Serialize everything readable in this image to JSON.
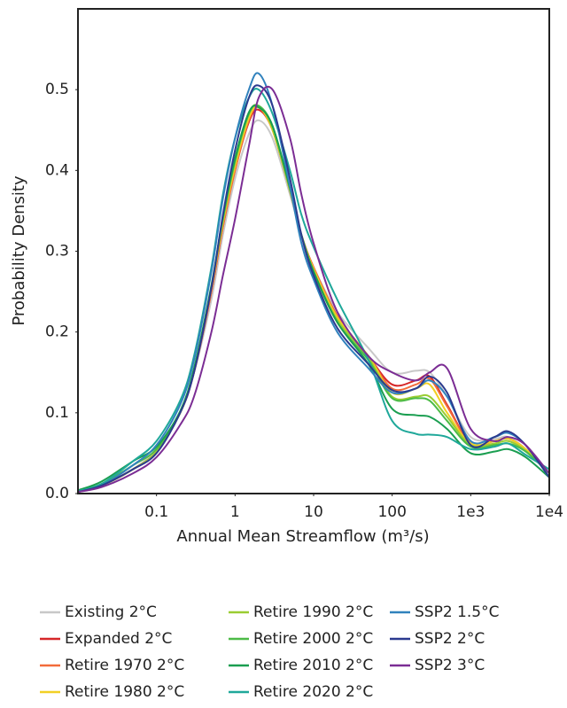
{
  "chart_data": {
    "type": "line",
    "x_label": "Annual Mean Streamflow (m³/s)",
    "y_label": "Probability Density",
    "x": [
      0.01,
      0.02,
      0.05,
      0.1,
      0.2,
      0.3,
      0.5,
      0.7,
      1,
      1.5,
      2,
      3,
      5,
      7,
      10,
      20,
      50,
      100,
      200,
      300,
      500,
      1000,
      2000,
      3000,
      5000,
      10000
    ],
    "xlim": [
      0.01,
      10000
    ],
    "xscale": "log",
    "xticks": [
      0.1,
      1,
      10,
      100,
      {
        "value": 1000,
        "label": "1e3"
      },
      {
        "value": 10000,
        "label": "1e4"
      }
    ],
    "ylim": [
      0,
      0.6
    ],
    "yticks": [
      {
        "value": 0,
        "label": "0.0"
      },
      0.1,
      0.2,
      0.3,
      0.4,
      0.5
    ],
    "grid": false,
    "series": [
      {
        "name": "Existing 2°C",
        "color": "#c8c8c8",
        "values": [
          0.002,
          0.01,
          0.03,
          0.055,
          0.1,
          0.15,
          0.24,
          0.32,
          0.39,
          0.445,
          0.462,
          0.44,
          0.37,
          0.32,
          0.28,
          0.225,
          0.18,
          0.15,
          0.152,
          0.15,
          0.12,
          0.07,
          0.068,
          0.07,
          0.055,
          0.025
        ]
      },
      {
        "name": "Expanded 2°C",
        "color": "#d62728",
        "values": [
          0.002,
          0.01,
          0.03,
          0.052,
          0.1,
          0.15,
          0.25,
          0.33,
          0.4,
          0.46,
          0.475,
          0.45,
          0.375,
          0.32,
          0.28,
          0.22,
          0.17,
          0.135,
          0.14,
          0.145,
          0.11,
          0.062,
          0.065,
          0.068,
          0.055,
          0.025
        ]
      },
      {
        "name": "Retire 1970 2°C",
        "color": "#f26b3a",
        "values": [
          0.002,
          0.01,
          0.03,
          0.052,
          0.1,
          0.15,
          0.25,
          0.33,
          0.4,
          0.462,
          0.478,
          0.45,
          0.375,
          0.32,
          0.28,
          0.22,
          0.17,
          0.13,
          0.135,
          0.142,
          0.108,
          0.062,
          0.065,
          0.068,
          0.055,
          0.025
        ]
      },
      {
        "name": "Retire 1980 2°C",
        "color": "#f2d024",
        "values": [
          0.002,
          0.01,
          0.03,
          0.052,
          0.1,
          0.152,
          0.255,
          0.335,
          0.405,
          0.465,
          0.478,
          0.45,
          0.375,
          0.32,
          0.278,
          0.218,
          0.17,
          0.125,
          0.13,
          0.135,
          0.1,
          0.062,
          0.065,
          0.068,
          0.055,
          0.025
        ]
      },
      {
        "name": "Retire 1990 2°C",
        "color": "#9acd32",
        "values": [
          0.002,
          0.01,
          0.03,
          0.052,
          0.1,
          0.152,
          0.255,
          0.338,
          0.41,
          0.47,
          0.48,
          0.452,
          0.375,
          0.32,
          0.275,
          0.215,
          0.168,
          0.12,
          0.12,
          0.12,
          0.095,
          0.06,
          0.062,
          0.065,
          0.053,
          0.025
        ]
      },
      {
        "name": "Retire 2000 2°C",
        "color": "#4cbb47",
        "values": [
          0.003,
          0.012,
          0.035,
          0.055,
          0.1,
          0.153,
          0.256,
          0.34,
          0.412,
          0.47,
          0.48,
          0.455,
          0.378,
          0.32,
          0.275,
          0.212,
          0.165,
          0.118,
          0.118,
          0.115,
          0.09,
          0.058,
          0.06,
          0.062,
          0.052,
          0.025
        ]
      },
      {
        "name": "Retire 2010 2°C",
        "color": "#1a9e50",
        "values": [
          0.004,
          0.015,
          0.04,
          0.058,
          0.102,
          0.155,
          0.258,
          0.342,
          0.415,
          0.472,
          0.478,
          0.455,
          0.378,
          0.32,
          0.275,
          0.212,
          0.16,
          0.105,
          0.097,
          0.095,
          0.08,
          0.05,
          0.052,
          0.055,
          0.045,
          0.02
        ]
      },
      {
        "name": "Retire 2020 2°C",
        "color": "#1fa89a",
        "values": [
          0.003,
          0.012,
          0.04,
          0.065,
          0.115,
          0.17,
          0.28,
          0.37,
          0.44,
          0.49,
          0.5,
          0.47,
          0.4,
          0.345,
          0.305,
          0.24,
          0.165,
          0.09,
          0.074,
          0.073,
          0.07,
          0.055,
          0.058,
          0.062,
          0.048,
          0.03
        ]
      },
      {
        "name": "SSP2 1.5°C",
        "color": "#3182bd",
        "values": [
          0.002,
          0.01,
          0.035,
          0.06,
          0.11,
          0.165,
          0.275,
          0.365,
          0.44,
          0.5,
          0.52,
          0.48,
          0.38,
          0.31,
          0.265,
          0.2,
          0.155,
          0.125,
          0.13,
          0.14,
          0.12,
          0.065,
          0.07,
          0.075,
          0.06,
          0.02
        ]
      },
      {
        "name": "SSP2 2°C",
        "color": "#2b3a8f",
        "values": [
          0.002,
          0.01,
          0.03,
          0.05,
          0.1,
          0.15,
          0.255,
          0.345,
          0.425,
          0.49,
          0.505,
          0.48,
          0.39,
          0.32,
          0.27,
          0.205,
          0.16,
          0.128,
          0.13,
          0.145,
          0.125,
          0.06,
          0.07,
          0.077,
          0.06,
          0.02
        ]
      },
      {
        "name": "SSP2 3°C",
        "color": "#7b2d94",
        "values": [
          0.002,
          0.008,
          0.025,
          0.045,
          0.085,
          0.12,
          0.2,
          0.27,
          0.34,
          0.43,
          0.49,
          0.5,
          0.44,
          0.37,
          0.31,
          0.225,
          0.17,
          0.15,
          0.14,
          0.15,
          0.155,
          0.08,
          0.065,
          0.07,
          0.06,
          0.025
        ]
      }
    ]
  }
}
